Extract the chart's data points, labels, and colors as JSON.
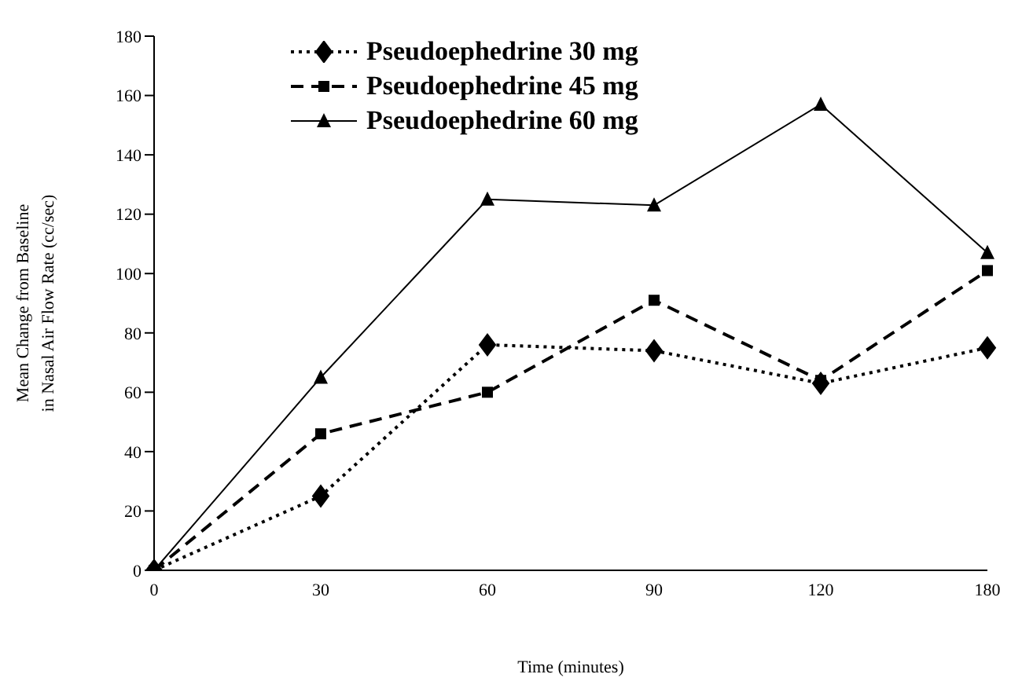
{
  "chart_data": {
    "type": "line",
    "xlabel": "Time (minutes)",
    "ylabel": "Mean Change from Baseline\nin Nasal Air Flow Rate (cc/sec)",
    "categories": [
      "0",
      "30",
      "60",
      "90",
      "120",
      "180"
    ],
    "series": [
      {
        "name": "Pseudoephedrine 30 mg",
        "color": "#000000",
        "marker": "diamond",
        "line_style": "dotted",
        "values": [
          0,
          25,
          76,
          74,
          63,
          75
        ]
      },
      {
        "name": "Pseudoephedrine 45 mg",
        "color": "#000000",
        "marker": "square",
        "line_style": "dashed",
        "values": [
          0,
          46,
          60,
          91,
          64,
          101
        ]
      },
      {
        "name": "Pseudoephedrine 60 mg",
        "color": "#000000",
        "marker": "triangle",
        "line_style": "solid",
        "values": [
          0,
          65,
          125,
          123,
          157,
          107
        ]
      }
    ],
    "ylim": [
      0,
      180
    ],
    "yticks": [
      0,
      20,
      40,
      60,
      80,
      100,
      120,
      140,
      160,
      180
    ],
    "grid": false,
    "legend": "top left"
  }
}
